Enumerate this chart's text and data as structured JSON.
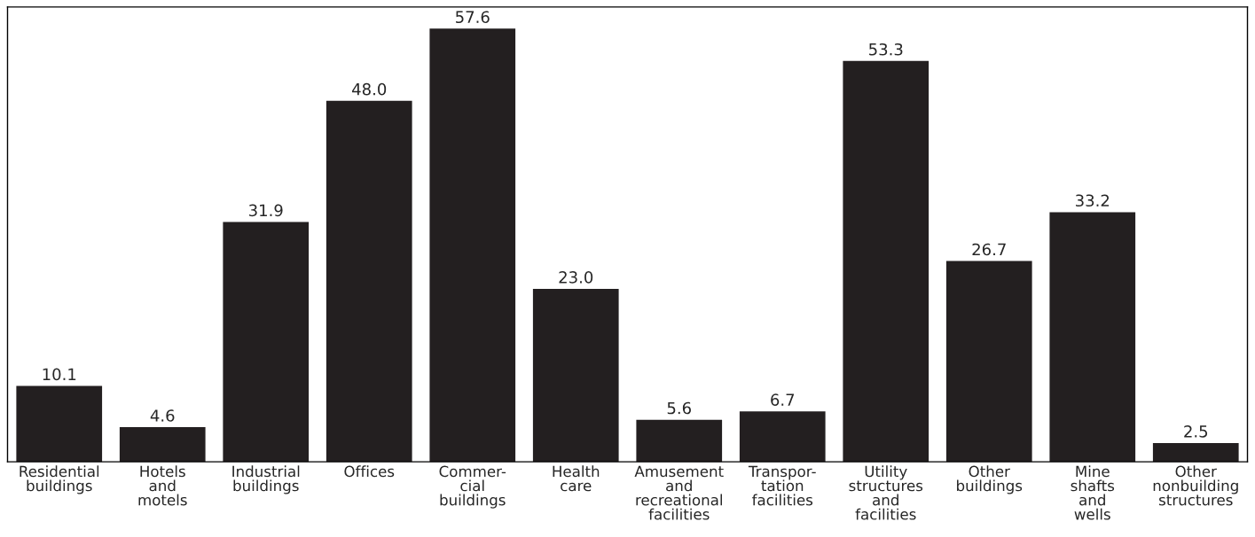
{
  "chart_data": {
    "type": "bar",
    "categories": [
      "Residential\nbuildings",
      "Hotels\nand\nmotels",
      "Industrial\nbuildings",
      "Offices",
      "Commer-\ncial\nbuildings",
      "Health\ncare",
      "Amusement\nand\nrecreational\nfacilities",
      "Transpor-\ntation\nfacilities",
      "Utility\nstructures\nand\nfacilities",
      "Other\nbuildings",
      "Mine\nshafts\nand\nwells",
      "Other\nnonbuilding\nstructures"
    ],
    "values": [
      10.1,
      4.6,
      31.9,
      48.0,
      57.6,
      23.0,
      5.6,
      6.7,
      53.3,
      26.7,
      33.2,
      2.5
    ],
    "value_labels": [
      "10.1",
      "4.6",
      "31.9",
      "48.0",
      "57.6",
      "23.0",
      "5.6",
      "6.7",
      "53.3",
      "26.7",
      "33.2",
      "2.5"
    ],
    "color": "#231f20",
    "grid": false,
    "tick_labels": "x"
  }
}
